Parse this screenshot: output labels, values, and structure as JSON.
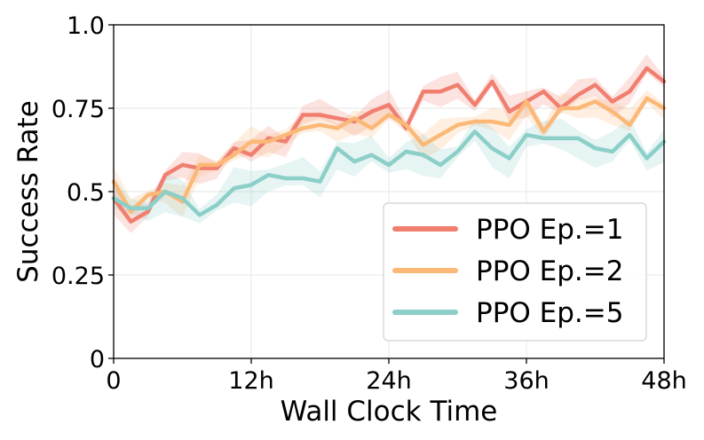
{
  "chart_data": {
    "type": "line",
    "title": "",
    "xlabel": "Wall Clock Time",
    "ylabel": "Success Rate",
    "xlim": [
      0,
      48
    ],
    "ylim": [
      0,
      1
    ],
    "grid": true,
    "legend_position": "bottom-right",
    "x_ticks": [
      {
        "value": 0,
        "label": "0"
      },
      {
        "value": 12,
        "label": "12h"
      },
      {
        "value": 24,
        "label": "24h"
      },
      {
        "value": 36,
        "label": "36h"
      },
      {
        "value": 48,
        "label": "48h"
      }
    ],
    "y_ticks": [
      {
        "value": 0,
        "label": "0"
      },
      {
        "value": 0.25,
        "label": "0.25"
      },
      {
        "value": 0.5,
        "label": "0.5"
      },
      {
        "value": 0.75,
        "label": "0.75"
      },
      {
        "value": 1.0,
        "label": "1.0"
      }
    ],
    "series": [
      {
        "name": "PPO Ep.=1",
        "color": "#f07f70",
        "band": 0.03,
        "x": [
          0,
          1.5,
          3,
          4.5,
          6,
          7.5,
          9,
          10.5,
          12,
          13.5,
          15,
          16.5,
          18,
          19.5,
          21,
          22.5,
          24,
          25.5,
          27,
          28.5,
          30,
          31.5,
          33,
          34.5,
          36,
          37.5,
          39,
          40.5,
          42,
          43.5,
          45,
          46.5,
          48
        ],
        "values": [
          0.48,
          0.41,
          0.44,
          0.55,
          0.58,
          0.57,
          0.57,
          0.63,
          0.61,
          0.66,
          0.65,
          0.73,
          0.73,
          0.72,
          0.71,
          0.74,
          0.76,
          0.69,
          0.8,
          0.8,
          0.82,
          0.76,
          0.83,
          0.74,
          0.77,
          0.8,
          0.75,
          0.79,
          0.82,
          0.77,
          0.8,
          0.87,
          0.83
        ]
      },
      {
        "name": "PPO Ep.=2",
        "color": "#fbb877",
        "band": 0.03,
        "x": [
          0,
          1.5,
          3,
          4.5,
          6,
          7.5,
          9,
          10.5,
          12,
          13.5,
          15,
          16.5,
          18,
          19.5,
          21,
          22.5,
          24,
          25.5,
          27,
          28.5,
          30,
          31.5,
          33,
          34.5,
          36,
          37.5,
          39,
          40.5,
          42,
          43.5,
          45,
          46.5,
          48
        ],
        "values": [
          0.53,
          0.44,
          0.49,
          0.5,
          0.47,
          0.58,
          0.58,
          0.61,
          0.65,
          0.65,
          0.67,
          0.69,
          0.7,
          0.69,
          0.72,
          0.69,
          0.73,
          0.7,
          0.64,
          0.67,
          0.7,
          0.71,
          0.71,
          0.7,
          0.77,
          0.68,
          0.75,
          0.75,
          0.77,
          0.74,
          0.7,
          0.78,
          0.75
        ]
      },
      {
        "name": "PPO Ep.=5",
        "color": "#8ccfc8",
        "band": 0.04,
        "x": [
          0,
          1.5,
          3,
          4.5,
          6,
          7.5,
          9,
          10.5,
          12,
          13.5,
          15,
          16.5,
          18,
          19.5,
          21,
          22.5,
          24,
          25.5,
          27,
          28.5,
          30,
          31.5,
          33,
          34.5,
          36,
          37.5,
          39,
          40.5,
          42,
          43.5,
          45,
          46.5,
          48
        ],
        "values": [
          0.48,
          0.45,
          0.45,
          0.5,
          0.48,
          0.43,
          0.46,
          0.51,
          0.52,
          0.55,
          0.54,
          0.54,
          0.53,
          0.63,
          0.59,
          0.61,
          0.58,
          0.62,
          0.61,
          0.58,
          0.62,
          0.68,
          0.63,
          0.6,
          0.67,
          0.66,
          0.66,
          0.66,
          0.63,
          0.62,
          0.67,
          0.6,
          0.65
        ]
      }
    ]
  }
}
